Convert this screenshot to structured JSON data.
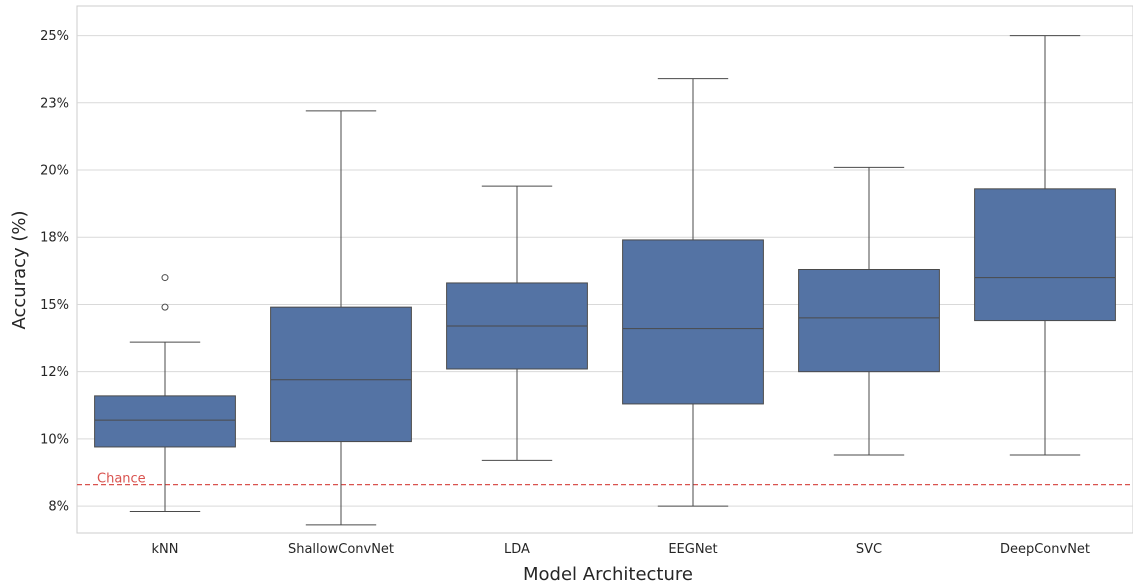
{
  "chart_data": {
    "type": "box",
    "xlabel": "Model Architecture",
    "ylabel": "Accuracy (%)",
    "categories": [
      "kNN",
      "ShallowConvNet",
      "LDA",
      "EEGNet",
      "SVC",
      "DeepConvNet"
    ],
    "ylim": [
      6.5,
      26.1
    ],
    "yticks": [
      7.5,
      10,
      12.5,
      15,
      17.5,
      20,
      22.5,
      25
    ],
    "ytick_labels": [
      "8%",
      "10%",
      "12%",
      "15%",
      "18%",
      "20%",
      "23%",
      "25%"
    ],
    "grid": true,
    "box_color": "#5473a4",
    "line_color": "#4a4a4a",
    "boxes": [
      {
        "name": "kNN",
        "whislo": 7.3,
        "q1": 9.7,
        "med": 10.7,
        "q3": 11.6,
        "whishi": 13.6,
        "fliers": [
          14.9,
          16.0
        ]
      },
      {
        "name": "ShallowConvNet",
        "whislo": 6.8,
        "q1": 9.9,
        "med": 12.2,
        "q3": 14.9,
        "whishi": 22.2,
        "fliers": []
      },
      {
        "name": "LDA",
        "whislo": 9.2,
        "q1": 12.6,
        "med": 14.2,
        "q3": 15.8,
        "whishi": 19.4,
        "fliers": []
      },
      {
        "name": "EEGNet",
        "whislo": 7.5,
        "q1": 11.3,
        "med": 14.1,
        "q3": 17.4,
        "whishi": 23.4,
        "fliers": []
      },
      {
        "name": "SVC",
        "whislo": 9.4,
        "q1": 12.5,
        "med": 14.5,
        "q3": 16.3,
        "whishi": 20.1,
        "fliers": []
      },
      {
        "name": "DeepConvNet",
        "whislo": 9.4,
        "q1": 14.4,
        "med": 16.0,
        "q3": 19.3,
        "whishi": 25.0,
        "fliers": []
      }
    ],
    "reference_line": {
      "label": "Chance",
      "value": 8.3,
      "color": "#d9534f"
    }
  }
}
